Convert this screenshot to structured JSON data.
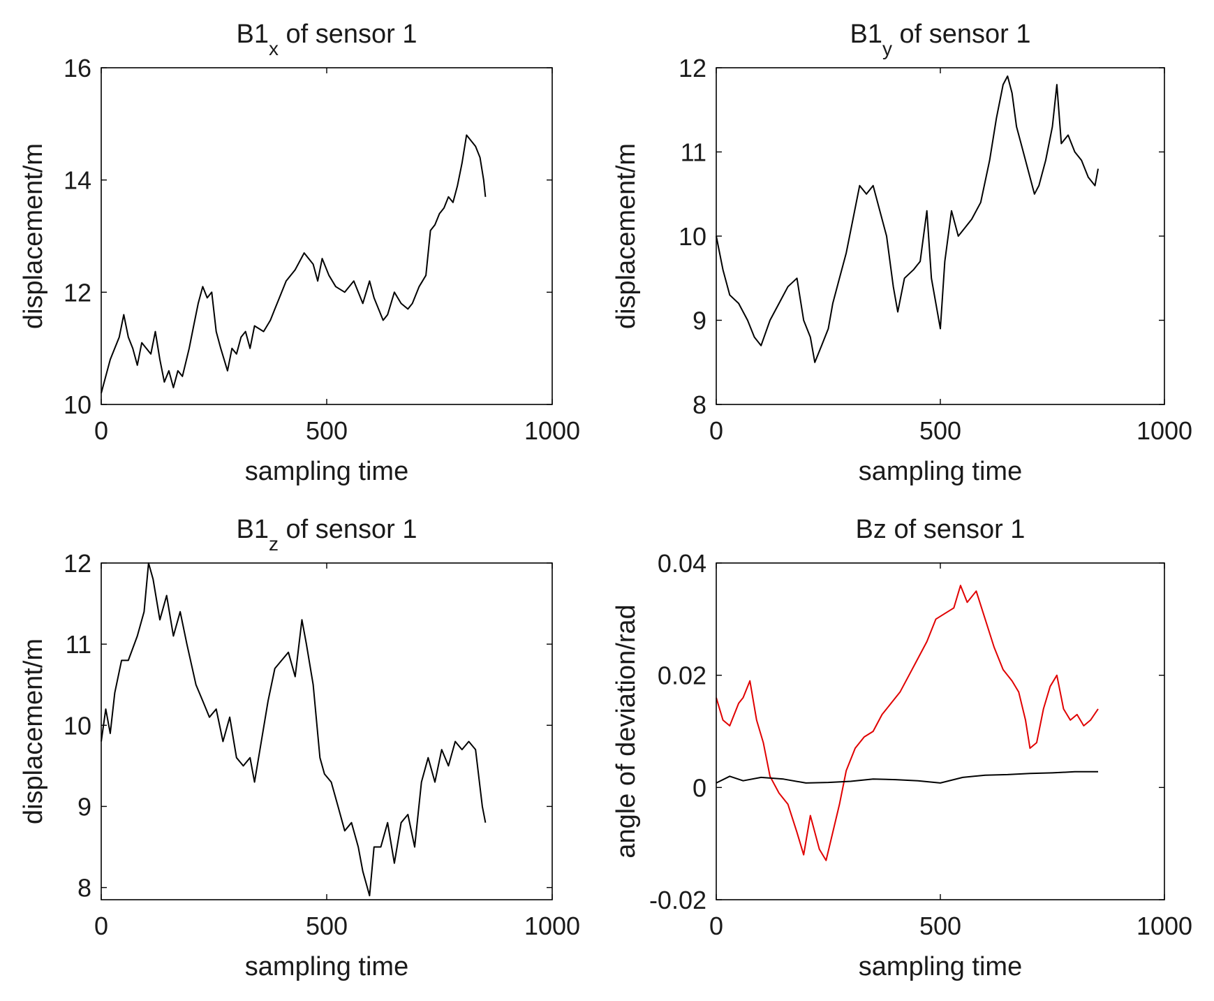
{
  "chart_data": [
    {
      "type": "line",
      "title": "B1x of sensor 1",
      "title_main": "B1",
      "title_sub": "x",
      "title_rest": " of sensor 1",
      "xlabel": "sampling time",
      "ylabel": "displacement/m",
      "xlim": [
        0,
        1000
      ],
      "ylim": [
        10,
        16
      ],
      "xticks": [
        0,
        500,
        1000
      ],
      "xtick_labels": [
        "0",
        "500",
        "1000"
      ],
      "yticks": [
        10,
        12,
        14,
        16
      ],
      "ytick_labels": [
        "10",
        "12",
        "14",
        "16"
      ],
      "grid": false,
      "series": [
        {
          "name": "B1x",
          "color": "#000000",
          "x": [
            0,
            20,
            40,
            50,
            60,
            70,
            80,
            90,
            110,
            120,
            130,
            140,
            150,
            160,
            170,
            180,
            195,
            205,
            215,
            225,
            235,
            245,
            255,
            265,
            280,
            290,
            300,
            310,
            320,
            330,
            340,
            360,
            375,
            385,
            395,
            410,
            430,
            450,
            470,
            480,
            490,
            505,
            520,
            540,
            560,
            580,
            595,
            605,
            625,
            635,
            650,
            665,
            680,
            690,
            705,
            720,
            730,
            740,
            750,
            760,
            770,
            780,
            790,
            800,
            810,
            820,
            830,
            840,
            848,
            852
          ],
          "values": [
            10.2,
            10.8,
            11.2,
            11.6,
            11.2,
            11.0,
            10.7,
            11.1,
            10.9,
            11.3,
            10.8,
            10.4,
            10.6,
            10.3,
            10.6,
            10.5,
            11.0,
            11.4,
            11.8,
            12.1,
            11.9,
            12.0,
            11.3,
            11.0,
            10.6,
            11.0,
            10.9,
            11.2,
            11.3,
            11.0,
            11.4,
            11.3,
            11.5,
            11.7,
            11.9,
            12.2,
            12.4,
            12.7,
            12.5,
            12.2,
            12.6,
            12.3,
            12.1,
            12.0,
            12.2,
            11.8,
            12.2,
            11.9,
            11.5,
            11.6,
            12.0,
            11.8,
            11.7,
            11.8,
            12.1,
            12.3,
            13.1,
            13.2,
            13.4,
            13.5,
            13.7,
            13.6,
            13.9,
            14.3,
            14.8,
            14.7,
            14.6,
            14.4,
            14.0,
            13.7
          ]
        }
      ]
    },
    {
      "type": "line",
      "title": "B1y of sensor 1",
      "title_main": "B1",
      "title_sub": "y",
      "title_rest": " of sensor 1",
      "xlabel": "sampling time",
      "ylabel": "displacement/m",
      "xlim": [
        0,
        1000
      ],
      "ylim": [
        8,
        12
      ],
      "xticks": [
        0,
        500,
        1000
      ],
      "xtick_labels": [
        "0",
        "500",
        "1000"
      ],
      "yticks": [
        8,
        9,
        10,
        11,
        12
      ],
      "ytick_labels": [
        "8",
        "9",
        "10",
        "11",
        "12"
      ],
      "grid": false,
      "series": [
        {
          "name": "B1y",
          "color": "#000000",
          "x": [
            0,
            15,
            30,
            50,
            70,
            85,
            100,
            120,
            140,
            160,
            180,
            195,
            210,
            220,
            235,
            250,
            260,
            275,
            290,
            305,
            320,
            335,
            350,
            365,
            380,
            395,
            405,
            420,
            440,
            455,
            470,
            480,
            490,
            500,
            510,
            525,
            540,
            555,
            570,
            590,
            610,
            625,
            640,
            650,
            660,
            670,
            680,
            695,
            710,
            720,
            735,
            750,
            760,
            770,
            785,
            800,
            815,
            830,
            845,
            852
          ],
          "values": [
            10.0,
            9.6,
            9.3,
            9.2,
            9.0,
            8.8,
            8.7,
            9.0,
            9.2,
            9.4,
            9.5,
            9.0,
            8.8,
            8.5,
            8.7,
            8.9,
            9.2,
            9.5,
            9.8,
            10.2,
            10.6,
            10.5,
            10.6,
            10.3,
            10.0,
            9.4,
            9.1,
            9.5,
            9.6,
            9.7,
            10.3,
            9.5,
            9.2,
            8.9,
            9.7,
            10.3,
            10.0,
            10.1,
            10.2,
            10.4,
            10.9,
            11.4,
            11.8,
            11.9,
            11.7,
            11.3,
            11.1,
            10.8,
            10.5,
            10.6,
            10.9,
            11.3,
            11.8,
            11.1,
            11.2,
            11.0,
            10.9,
            10.7,
            10.6,
            10.8
          ]
        }
      ]
    },
    {
      "type": "line",
      "title": "B1z of sensor 1",
      "title_main": "B1",
      "title_sub": "z",
      "title_rest": " of sensor 1",
      "xlabel": "sampling time",
      "ylabel": "displacement/m",
      "xlim": [
        0,
        1000
      ],
      "ylim": [
        7.85,
        12
      ],
      "xticks": [
        0,
        500,
        1000
      ],
      "xtick_labels": [
        "0",
        "500",
        "1000"
      ],
      "yticks": [
        8,
        9,
        10,
        11,
        12
      ],
      "ytick_labels": [
        "8",
        "9",
        "10",
        "11",
        "12"
      ],
      "grid": false,
      "series": [
        {
          "name": "B1z",
          "color": "#000000",
          "x": [
            0,
            10,
            20,
            30,
            45,
            60,
            80,
            95,
            105,
            115,
            130,
            145,
            160,
            175,
            190,
            210,
            225,
            240,
            255,
            270,
            285,
            300,
            315,
            330,
            340,
            355,
            370,
            385,
            400,
            415,
            430,
            445,
            455,
            470,
            485,
            495,
            510,
            525,
            540,
            555,
            570,
            580,
            595,
            605,
            620,
            635,
            650,
            665,
            680,
            695,
            710,
            725,
            740,
            755,
            770,
            785,
            800,
            815,
            830,
            845,
            852
          ],
          "values": [
            9.8,
            10.2,
            9.9,
            10.4,
            10.8,
            10.8,
            11.1,
            11.4,
            12.0,
            11.8,
            11.3,
            11.6,
            11.1,
            11.4,
            11.0,
            10.5,
            10.3,
            10.1,
            10.2,
            9.8,
            10.1,
            9.6,
            9.5,
            9.6,
            9.3,
            9.8,
            10.3,
            10.7,
            10.8,
            10.9,
            10.6,
            11.3,
            11.0,
            10.5,
            9.6,
            9.4,
            9.3,
            9.0,
            8.7,
            8.8,
            8.5,
            8.2,
            7.9,
            8.5,
            8.5,
            8.8,
            8.3,
            8.8,
            8.9,
            8.5,
            9.3,
            9.6,
            9.3,
            9.7,
            9.5,
            9.8,
            9.7,
            9.8,
            9.7,
            9.0,
            8.8
          ]
        }
      ]
    },
    {
      "type": "line",
      "title": "Bz of sensor 1",
      "title_main": "Bz",
      "title_sub": "",
      "title_rest": " of sensor 1",
      "xlabel": "sampling time",
      "ylabel": "angle of deviation/rad",
      "xlim": [
        0,
        1000
      ],
      "ylim": [
        -0.02,
        0.04
      ],
      "xticks": [
        0,
        500,
        1000
      ],
      "xtick_labels": [
        "0",
        "500",
        "1000"
      ],
      "yticks": [
        -0.02,
        0,
        0.02,
        0.04
      ],
      "ytick_labels": [
        "-0.02",
        "0",
        "0.02",
        "0.04"
      ],
      "grid": false,
      "series": [
        {
          "name": "red-series",
          "color": "#e00000",
          "x": [
            0,
            15,
            30,
            50,
            60,
            75,
            90,
            105,
            120,
            140,
            160,
            180,
            195,
            210,
            230,
            245,
            260,
            275,
            290,
            310,
            330,
            350,
            370,
            390,
            410,
            430,
            450,
            470,
            490,
            510,
            530,
            545,
            560,
            580,
            600,
            620,
            640,
            660,
            675,
            690,
            700,
            715,
            730,
            745,
            760,
            775,
            790,
            805,
            820,
            835,
            852
          ],
          "values": [
            0.016,
            0.012,
            0.011,
            0.015,
            0.016,
            0.019,
            0.012,
            0.008,
            0.002,
            -0.001,
            -0.003,
            -0.008,
            -0.012,
            -0.005,
            -0.011,
            -0.013,
            -0.008,
            -0.003,
            0.003,
            0.007,
            0.009,
            0.01,
            0.013,
            0.015,
            0.017,
            0.02,
            0.023,
            0.026,
            0.03,
            0.031,
            0.032,
            0.036,
            0.033,
            0.035,
            0.03,
            0.025,
            0.021,
            0.019,
            0.017,
            0.012,
            0.007,
            0.008,
            0.014,
            0.018,
            0.02,
            0.014,
            0.012,
            0.013,
            0.011,
            0.012,
            0.014
          ]
        },
        {
          "name": "black-series",
          "color": "#000000",
          "x": [
            0,
            30,
            60,
            100,
            150,
            200,
            250,
            300,
            350,
            400,
            450,
            500,
            550,
            600,
            650,
            700,
            750,
            800,
            852
          ],
          "values": [
            0.0008,
            0.002,
            0.0012,
            0.0018,
            0.0015,
            0.0008,
            0.0009,
            0.0011,
            0.0015,
            0.0014,
            0.0012,
            0.0008,
            0.0018,
            0.0022,
            0.0023,
            0.0025,
            0.0026,
            0.0028,
            0.0028
          ]
        }
      ]
    }
  ]
}
